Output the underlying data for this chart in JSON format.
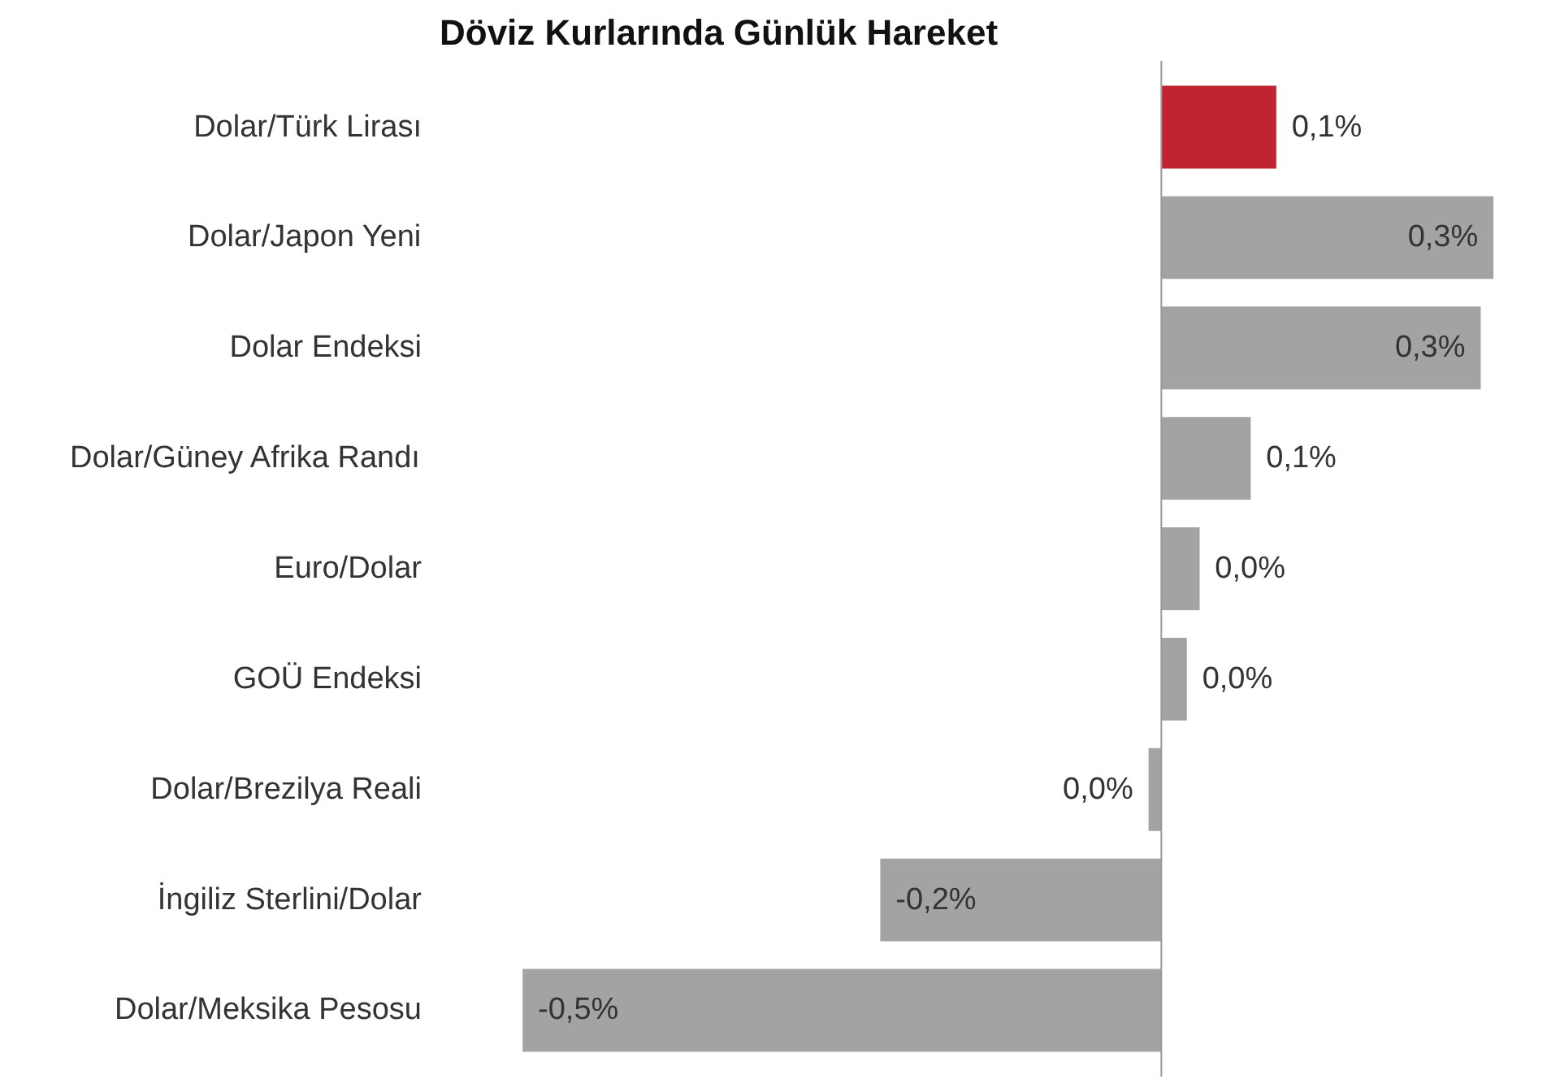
{
  "chart_data": {
    "type": "bar",
    "orientation": "horizontal",
    "tick_labels": "y",
    "title": "Döviz Kurlarında Günlük Hareket",
    "categories": [
      "Dolar/Türk Lirası",
      "Dolar/Japon Yeni",
      "Dolar Endeksi",
      "Dolar/Güney Afrika Randı",
      "Euro/Dolar",
      "GOÜ Endeksi",
      "Dolar/Brezilya Reali",
      "İngiliz Sterlini/Dolar",
      "Dolar/Meksika Pesosu"
    ],
    "values": [
      0.09,
      0.26,
      0.25,
      0.07,
      0.03,
      0.02,
      -0.01,
      -0.22,
      -0.5
    ],
    "colors": [
      "#c0252f",
      "#a2a3a5",
      "#a2a3a5",
      "#a2a3a5",
      "#a2a3a5",
      "#a2a3a5",
      "#a2a3a5",
      "#a2a3a5",
      "#a2a3a5"
    ],
    "value_labels": [
      "0,1%",
      "0,3%",
      "0,3%",
      "0,1%",
      "0,0%",
      "0,0%",
      "0,0%",
      "-0,2%",
      "-0,5%"
    ]
  }
}
